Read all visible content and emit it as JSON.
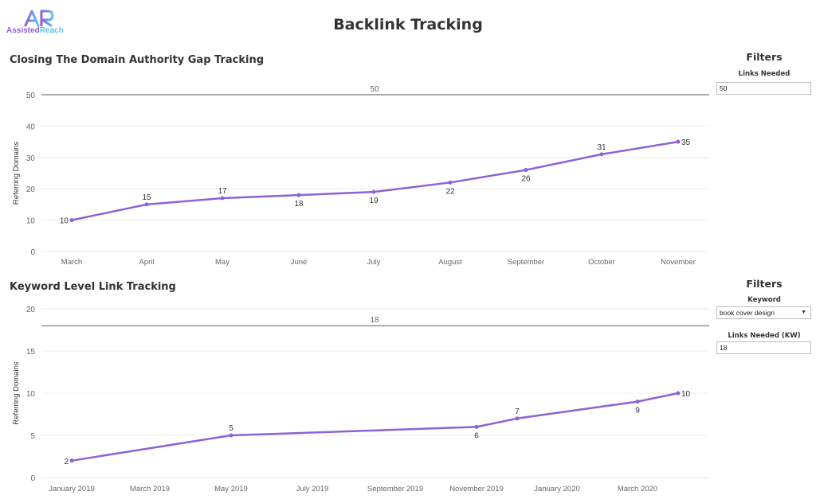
{
  "header": {
    "title": "Backlink Tracking",
    "logo_mark": "AR",
    "logo_text_a": "Assisted",
    "logo_text_b": "Reach",
    "brand_purple": "#8e5ed9",
    "brand_blue": "#5fc6ee"
  },
  "chart_data": [
    {
      "type": "line",
      "title": "Closing The Domain Authority Gap Tracking",
      "ylabel": "Referring Domains",
      "xlabel": "",
      "categories": [
        "March",
        "April",
        "May",
        "June",
        "July",
        "August",
        "September",
        "October",
        "November"
      ],
      "values": [
        10,
        15,
        17,
        18,
        19,
        22,
        26,
        31,
        35
      ],
      "label_side": [
        "left",
        "above",
        "above",
        "below",
        "below",
        "below",
        "below",
        "above",
        "right"
      ],
      "reference_line": {
        "value": 50,
        "label": "50"
      },
      "ylim": [
        0,
        50
      ],
      "yticks": [
        0,
        10,
        20,
        30,
        40,
        50
      ],
      "grid": true,
      "color": "#8e62d6"
    },
    {
      "type": "line",
      "title": "Keyword Level Link Tracking",
      "ylabel": "Referring Domains",
      "xlabel": "",
      "x_tick_labels": [
        "January 2019",
        "March 2019",
        "May 2019",
        "July 2019",
        "September 2019",
        "November 2019",
        "January 2020",
        "March 2020"
      ],
      "x": [
        "2019-01",
        "2019-05",
        "2019-11",
        "2019-12",
        "2020-03",
        "2020-04"
      ],
      "values": [
        2,
        5,
        6,
        7,
        9,
        10
      ],
      "label_side": [
        "left",
        "above",
        "below",
        "above",
        "below",
        "right"
      ],
      "reference_line": {
        "value": 18,
        "label": "18"
      },
      "ylim": [
        0,
        20
      ],
      "yticks": [
        0,
        5,
        10,
        15,
        20
      ],
      "grid": true,
      "color": "#8e62d6"
    }
  ],
  "filters": [
    {
      "title": "Filters",
      "fields": [
        {
          "label": "Links Needed",
          "value": "50"
        }
      ]
    },
    {
      "title": "Filters",
      "fields": [
        {
          "label": "Keyword",
          "value": "book cover design",
          "arrow": "▼"
        },
        {
          "label": "Links Needed (KW)",
          "value": "18"
        }
      ]
    }
  ]
}
